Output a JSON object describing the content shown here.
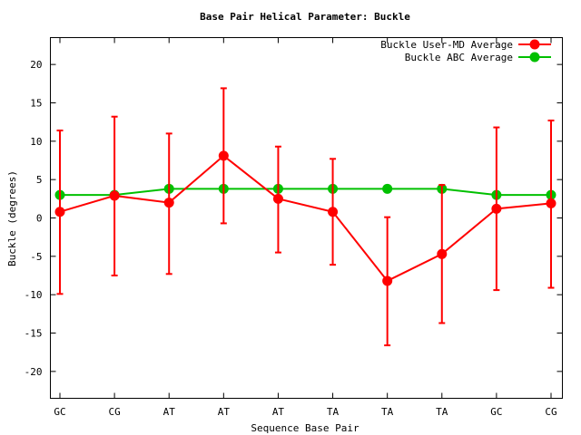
{
  "chart_data": {
    "type": "line",
    "title": "Base Pair Helical Parameter: Buckle",
    "xlabel": "Sequence Base Pair",
    "ylabel": "Buckle (degrees)",
    "categories": [
      "GC",
      "CG",
      "AT",
      "AT",
      "AT",
      "TA",
      "TA",
      "TA",
      "GC",
      "CG"
    ],
    "ylim": [
      -23.5,
      23.5
    ],
    "yticks": [
      -20,
      -15,
      -10,
      -5,
      0,
      5,
      10,
      15,
      20
    ],
    "grid": false,
    "legend_position": "top-right",
    "series": [
      {
        "name": "Buckle User-MD Average",
        "color": "#ff0000",
        "values": [
          0.8,
          2.9,
          2.0,
          8.1,
          2.5,
          0.8,
          -8.2,
          -4.7,
          1.2,
          1.9
        ],
        "err_low": [
          -9.9,
          -7.5,
          -7.3,
          -0.7,
          -4.5,
          -6.1,
          -16.6,
          -13.7,
          -9.4,
          -9.1
        ],
        "err_high": [
          11.4,
          13.2,
          11.0,
          16.9,
          9.3,
          7.7,
          0.1,
          4.3,
          11.8,
          12.7
        ]
      },
      {
        "name": "Buckle ABC Average",
        "color": "#00c000",
        "values": [
          3.0,
          3.0,
          3.8,
          3.8,
          3.8,
          3.8,
          3.8,
          3.8,
          3.0,
          3.0
        ]
      }
    ]
  }
}
